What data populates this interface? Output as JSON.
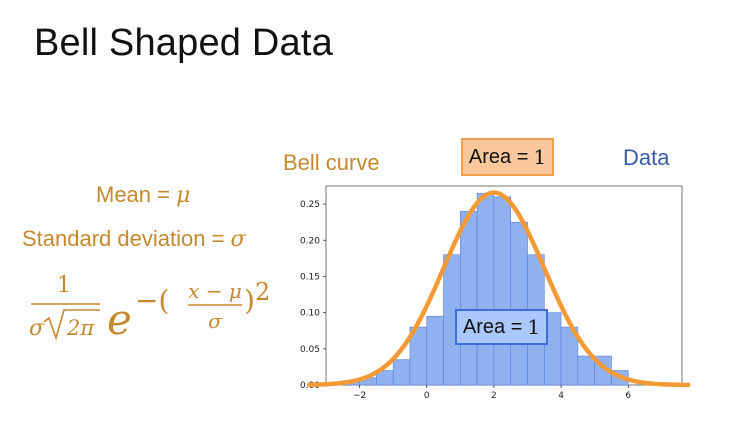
{
  "slide": {
    "title": "Bell Shaped Data",
    "mean_label": "Mean = ",
    "mean_symbol": "μ",
    "sd_label": "Standard deviation = ",
    "sd_symbol": "σ",
    "formula": {
      "numerator": "1",
      "sigma": "σ",
      "two_pi": "2π",
      "e": "e",
      "minus_paren": "−(",
      "frac_num": "x − μ",
      "frac_den": "σ",
      "close_paren": ")",
      "exponent": "2"
    },
    "bell_curve_label": "Bell curve",
    "data_label": "Data",
    "area_top": {
      "text": "Area = ",
      "value": "1"
    },
    "area_mid": {
      "text": "Area = ",
      "value": "1"
    }
  },
  "colors": {
    "orange_text": "#c68a2e",
    "blue_text": "#3a5ba8",
    "curve": "#f39a36",
    "bar_fill": "#8fb1f0",
    "bar_edge": "#5a7fd6"
  },
  "chart_data": {
    "type": "bar",
    "bin_width": 0.5,
    "bin_starts": [
      -2.5,
      -2.0,
      -1.5,
      -1.0,
      -0.5,
      0.0,
      0.5,
      1.0,
      1.5,
      2.0,
      2.5,
      3.0,
      3.5,
      4.0,
      4.5,
      5.0,
      5.5
    ],
    "values": [
      0.005,
      0.01,
      0.02,
      0.035,
      0.08,
      0.095,
      0.18,
      0.24,
      0.265,
      0.26,
      0.225,
      0.18,
      0.1,
      0.08,
      0.04,
      0.04,
      0.02
    ],
    "curve": {
      "mean": 2,
      "sd": 1.5
    },
    "xlim": [
      -3.0,
      7.6
    ],
    "ylim": [
      0,
      0.275
    ],
    "x_ticks": [
      "−2",
      "0",
      "2",
      "4",
      "6"
    ],
    "y_ticks": [
      "0.00",
      "0.05",
      "0.10",
      "0.15",
      "0.20",
      "0.25"
    ],
    "grid": false
  }
}
